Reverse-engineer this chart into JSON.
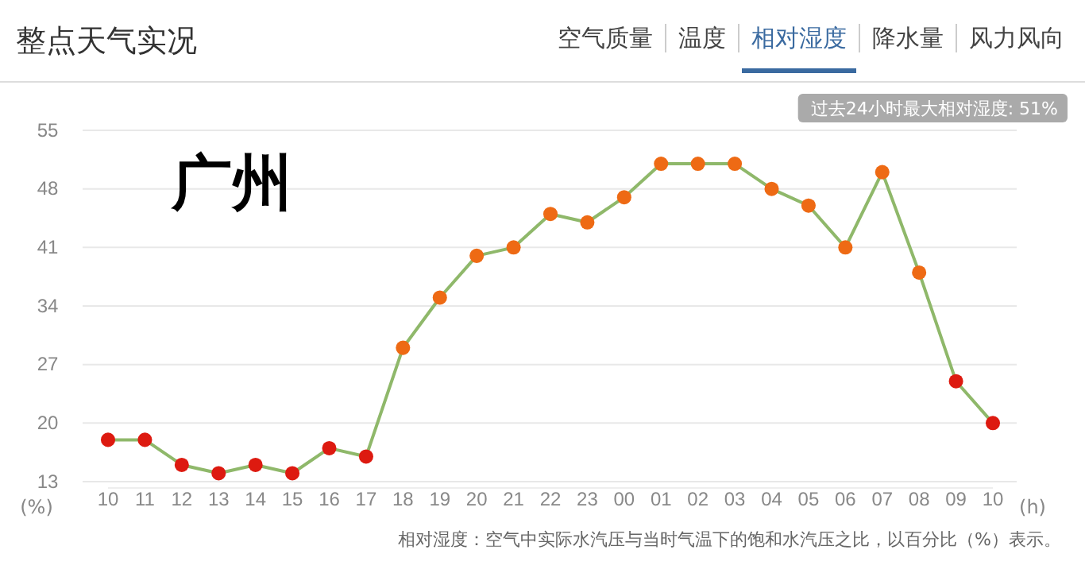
{
  "chart_data": {
    "type": "line",
    "title": "整点天气实况",
    "xlabel": "(h)",
    "ylabel": "(%)",
    "annotations": [
      "空气质量",
      "温度",
      "相对湿度",
      "降水量",
      "风力风向",
      "过去24小时最大相对湿度: 51%",
      "广州",
      "相对湿度：空气中实际水汽压与当时气温下的饱和水汽压之比，以百分比（%）表示。"
    ],
    "categories": [
      "10",
      "11",
      "12",
      "13",
      "14",
      "15",
      "16",
      "17",
      "18",
      "19",
      "20",
      "21",
      "22",
      "23",
      "00",
      "01",
      "02",
      "03",
      "04",
      "05",
      "06",
      "07",
      "08",
      "09",
      "10"
    ],
    "series": [
      {
        "color": "#8fb86a",
        "values": [
          18,
          18,
          15,
          14,
          15,
          14,
          17,
          16,
          29,
          35,
          40,
          41,
          45,
          44,
          47,
          51,
          51,
          51,
          48,
          46,
          41,
          50,
          38,
          25,
          20
        ],
        "colors": [
          "#dd1a10",
          "#dd1a10",
          "#dd1a10",
          "#dd1a10",
          "#dd1a10",
          "#dd1a10",
          "#dd1a10",
          "#dd1a10",
          "#ee6a14",
          "#ee6a14",
          "#ee6a14",
          "#ee6a14",
          "#ee6a14",
          "#ee6a14",
          "#ee6a14",
          "#ee6a14",
          "#ee6a14",
          "#ee6a14",
          "#ee6a14",
          "#ee6a14",
          "#ee6a14",
          "#ee6a14",
          "#ee6a14",
          "#dd1a10",
          "#dd1a10"
        ]
      }
    ],
    "ylim": [
      13,
      55
    ],
    "yticks": [
      13,
      20,
      27,
      34,
      41,
      48,
      55
    ],
    "grid": "y",
    "marker": "circle",
    "line_style": "solid"
  }
}
